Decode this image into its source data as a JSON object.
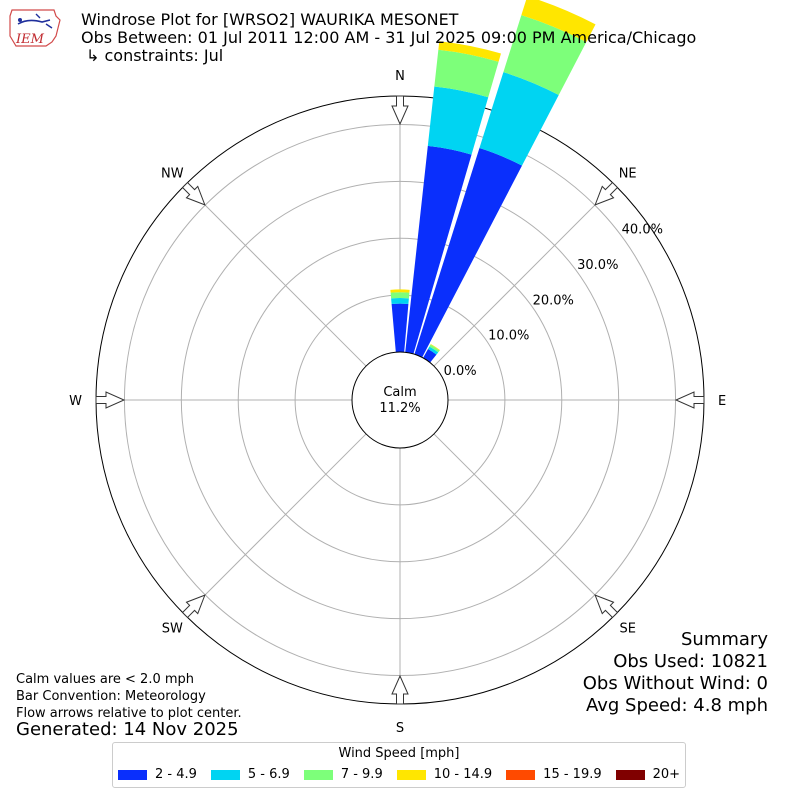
{
  "header": {
    "title": "Windrose Plot for [WRSO2] WAURIKA MESONET",
    "subtitle": "Obs Between: 01 Jul 2011 12:00 AM - 31 Jul 2025 09:00 PM America/Chicago",
    "constraints": "↳ constraints: Jul",
    "logo_text": "IEM"
  },
  "notes": {
    "line1": "Calm values are < 2.0 mph",
    "line2": "Bar Convention: Meteorology",
    "line3": "Flow arrows relative to plot center.",
    "generated": "Generated: 14 Nov 2025"
  },
  "summary": {
    "title": "Summary",
    "obs_used": "Obs Used: 10821",
    "obs_without_wind": "Obs Without Wind: 0",
    "avg_speed": "Avg Speed: 4.8 mph"
  },
  "legend": {
    "title": "Wind Speed [mph]",
    "items": [
      {
        "label": "2 - 4.9",
        "color": "#0a2ffc"
      },
      {
        "label": "5 - 6.9",
        "color": "#00d4f2"
      },
      {
        "label": "7 - 9.9",
        "color": "#7dff7a"
      },
      {
        "label": "10 - 14.9",
        "color": "#ffe600"
      },
      {
        "label": "15 - 19.9",
        "color": "#ff4a00"
      },
      {
        "label": "20+",
        "color": "#800000"
      }
    ]
  },
  "chart_data": {
    "type": "windrose",
    "calm_label": "Calm",
    "calm_value": "11.2%",
    "directions": [
      "N",
      "NE",
      "E",
      "SE",
      "S",
      "SW",
      "W",
      "NW"
    ],
    "radial_ticks": [
      0,
      10,
      20,
      30,
      40
    ],
    "radial_tick_labels": [
      "0.0%",
      "10.0%",
      "20.0%",
      "30.0%",
      "40.0%"
    ],
    "radial_max": 45,
    "bin_colors": [
      "#0a2ffc",
      "#00d4f2",
      "#7dff7a",
      "#ffe600",
      "#ff4a00",
      "#800000"
    ],
    "sectors": [
      {
        "center_deg": 0,
        "values": [
          8.5,
          1.0,
          1.0,
          0.5,
          0,
          0
        ]
      },
      {
        "center_deg": 11.25,
        "values": [
          36.5,
          10.5,
          6.5,
          1.5,
          0,
          0
        ]
      },
      {
        "center_deg": 22.5,
        "values": [
          38.0,
          14.0,
          10.5,
          3.5,
          0,
          0
        ]
      },
      {
        "center_deg": 33.75,
        "values": [
          1.8,
          0.5,
          0.4,
          0.1,
          0,
          0
        ]
      }
    ]
  }
}
